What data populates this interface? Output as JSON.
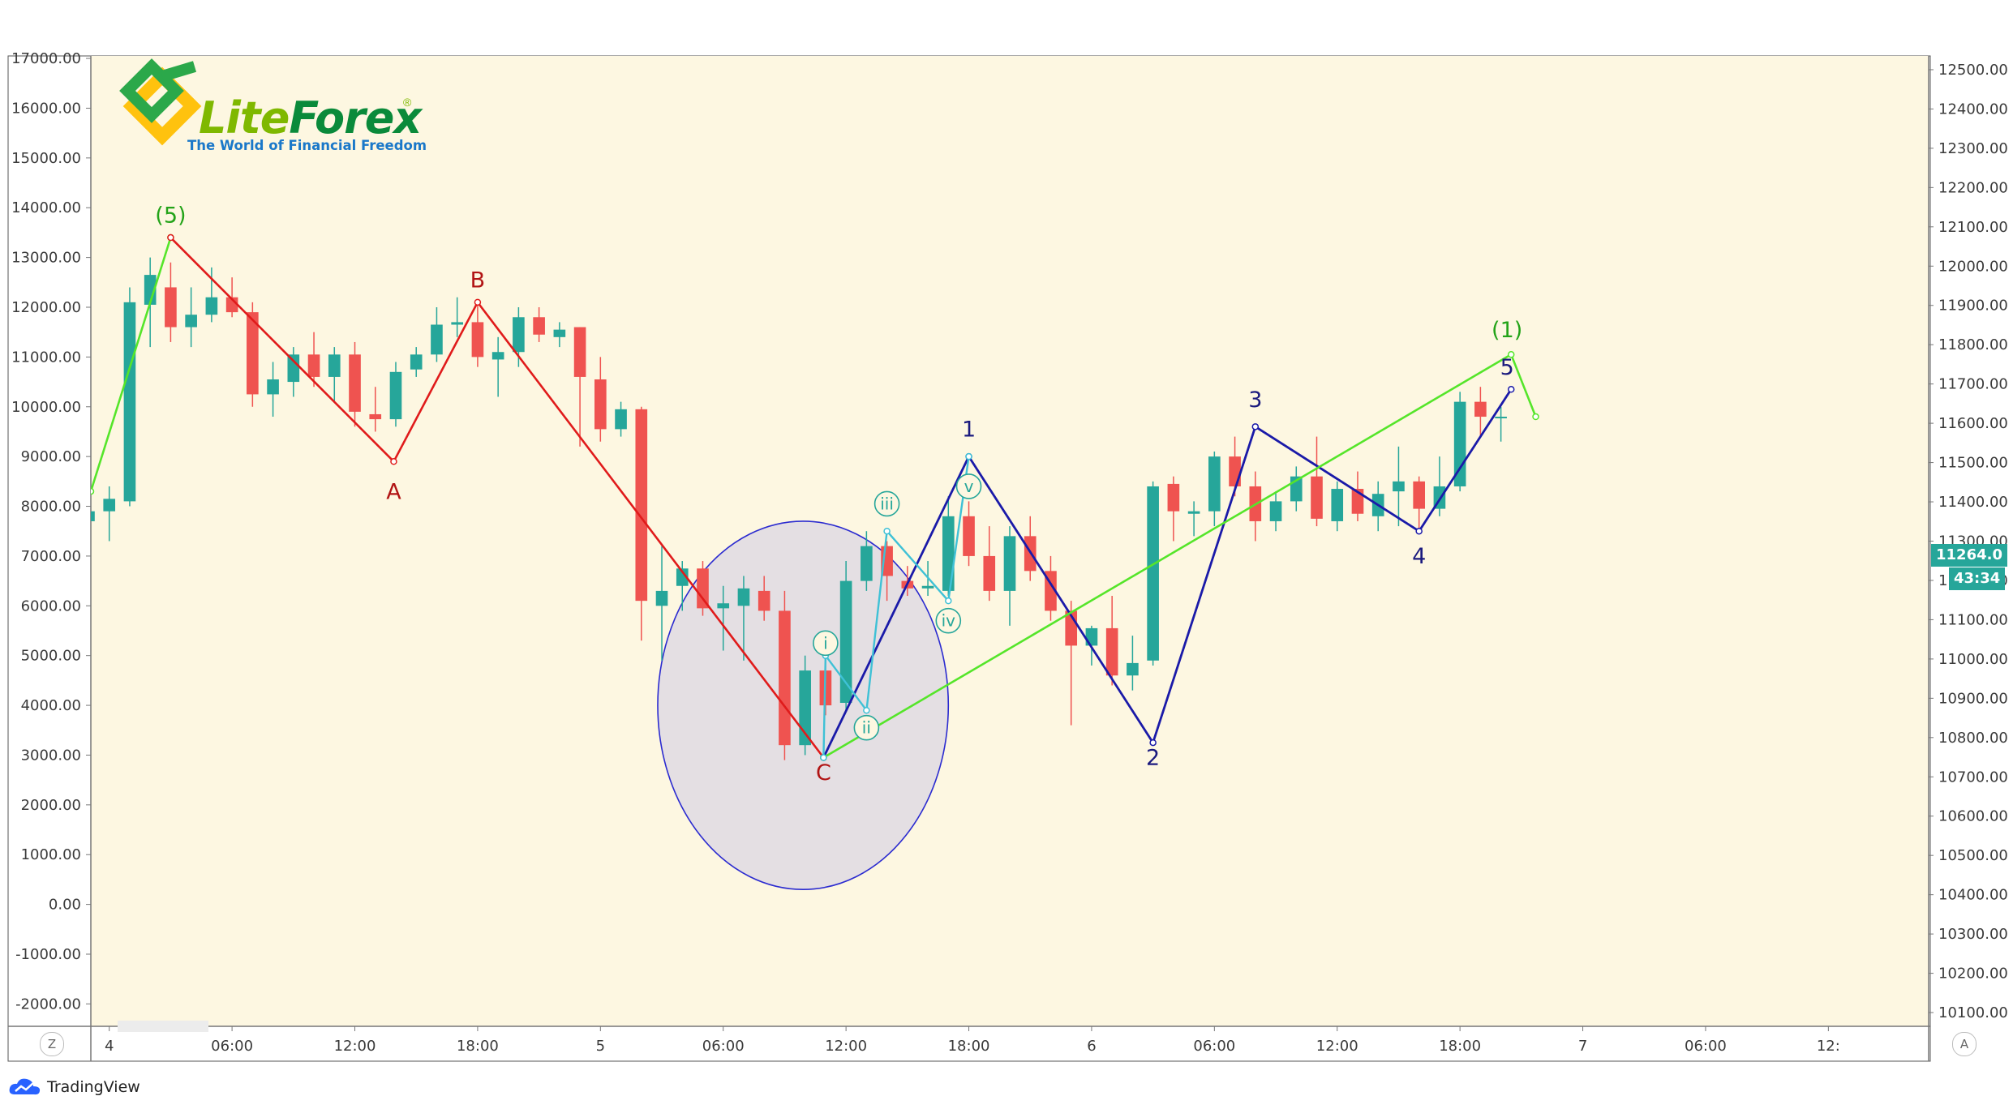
{
  "branding": {
    "logo_name_a": "Lite",
    "logo_name_b": "Forex",
    "logo_reg": "®",
    "logo_tagline": "The World of Financial Freedom",
    "platform": "TradingView"
  },
  "controls": {
    "left_button": "Z",
    "right_button": "A"
  },
  "price_tags": {
    "last_price": "11264.0",
    "countdown": "43:34"
  },
  "colors": {
    "background": "#fdf7e1",
    "up": "#26a69a",
    "down": "#ef5350",
    "abc": "#e01b1b",
    "impulse": "#1a1aa8",
    "macro": "#55e52a",
    "subwave": "#3fc1d6",
    "circle_stroke": "#2b2bd0",
    "circle_fill": "#e4dfe3"
  },
  "chart_data": {
    "type": "candlestick",
    "title": "",
    "time_unit": "hours since day 4 00:00 (3-hour candles)",
    "x_range": [
      -0.9,
      88.9
    ],
    "x_ticks": [
      {
        "t": 0,
        "label": "4"
      },
      {
        "t": 6,
        "label": "06:00"
      },
      {
        "t": 12,
        "label": "12:00"
      },
      {
        "t": 18,
        "label": "18:00"
      },
      {
        "t": 24,
        "label": "5"
      },
      {
        "t": 30,
        "label": "06:00"
      },
      {
        "t": 36,
        "label": "12:00"
      },
      {
        "t": 42,
        "label": "18:00"
      },
      {
        "t": 48,
        "label": "6"
      },
      {
        "t": 54,
        "label": "06:00"
      },
      {
        "t": 60,
        "label": "12:00"
      },
      {
        "t": 66,
        "label": "18:00"
      },
      {
        "t": 72,
        "label": "7"
      },
      {
        "t": 78,
        "label": "06:00"
      },
      {
        "t": 84,
        "label": "12:"
      }
    ],
    "left_axis": {
      "range": [
        -2450,
        17050
      ],
      "ticks": [
        17000,
        16000,
        15000,
        14000,
        13000,
        12000,
        11000,
        10000,
        9000,
        8000,
        7000,
        6000,
        5000,
        4000,
        3000,
        2000,
        1000,
        0,
        -1000,
        -2000
      ],
      "labels": [
        "17000.00",
        "16000.00",
        "15000.00",
        "14000.00",
        "13000.00",
        "12000.00",
        "11000.00",
        "10000.00",
        "9000.00",
        "8000.00",
        "7000.00",
        "6000.00",
        "5000.00",
        "4000.00",
        "3000.00",
        "2000.00",
        "1000.00",
        "0.00",
        "-1000.00",
        "-2000.00"
      ]
    },
    "right_axis": {
      "range": [
        10065,
        12535
      ],
      "ticks": [
        12500,
        12400,
        12300,
        12200,
        12100,
        12000,
        11900,
        11800,
        11700,
        11600,
        11500,
        11400,
        11300,
        11200,
        11100,
        11000,
        10900,
        10800,
        10700,
        10600,
        10500,
        10400,
        10300,
        10200,
        10100
      ],
      "labels": [
        "12500.00",
        "12400.00",
        "12300.00",
        "12200.00",
        "12100.00",
        "12000.00",
        "11900.00",
        "11800.00",
        "11700.00",
        "11600.00",
        "11500.00",
        "11400.00",
        "11300.00",
        "11200.00",
        "11100.00",
        "11000.00",
        "10900.00",
        "10800.00",
        "10700.00",
        "10600.00",
        "10500.00",
        "10400.00",
        "10300.00",
        "10200.00",
        "10100.00"
      ]
    },
    "candles": [
      {
        "t": -1,
        "o": 7700,
        "h": 8200,
        "l": 7000,
        "c": 7900
      },
      {
        "t": 0,
        "o": 7900,
        "h": 8400,
        "l": 7300,
        "c": 8150
      },
      {
        "t": 1,
        "o": 8100,
        "h": 12400,
        "l": 8000,
        "c": 12100
      },
      {
        "t": 2,
        "o": 12050,
        "h": 13000,
        "l": 11200,
        "c": 12650
      },
      {
        "t": 3,
        "o": 12400,
        "h": 12900,
        "l": 11300,
        "c": 11600
      },
      {
        "t": 4,
        "o": 11600,
        "h": 12400,
        "l": 11200,
        "c": 11850
      },
      {
        "t": 5,
        "o": 11850,
        "h": 12800,
        "l": 11700,
        "c": 12200
      },
      {
        "t": 6,
        "o": 12200,
        "h": 12600,
        "l": 11800,
        "c": 11900
      },
      {
        "t": 7,
        "o": 11900,
        "h": 12100,
        "l": 10000,
        "c": 10250
      },
      {
        "t": 8,
        "o": 10250,
        "h": 10900,
        "l": 9800,
        "c": 10550
      },
      {
        "t": 9,
        "o": 10500,
        "h": 11200,
        "l": 10200,
        "c": 11050
      },
      {
        "t": 10,
        "o": 11050,
        "h": 11500,
        "l": 10400,
        "c": 10600
      },
      {
        "t": 11,
        "o": 10600,
        "h": 11200,
        "l": 10100,
        "c": 11050
      },
      {
        "t": 12,
        "o": 11050,
        "h": 11300,
        "l": 9600,
        "c": 9900
      },
      {
        "t": 13,
        "o": 9850,
        "h": 10400,
        "l": 9500,
        "c": 9750
      },
      {
        "t": 14,
        "o": 9750,
        "h": 10900,
        "l": 9600,
        "c": 10700
      },
      {
        "t": 15,
        "o": 10750,
        "h": 11200,
        "l": 10600,
        "c": 11050
      },
      {
        "t": 16,
        "o": 11050,
        "h": 12000,
        "l": 10900,
        "c": 11650
      },
      {
        "t": 17,
        "o": 11650,
        "h": 12200,
        "l": 11400,
        "c": 11700
      },
      {
        "t": 18,
        "o": 11700,
        "h": 12100,
        "l": 10800,
        "c": 11000
      },
      {
        "t": 19,
        "o": 10950,
        "h": 11400,
        "l": 10200,
        "c": 11100
      },
      {
        "t": 20,
        "o": 11100,
        "h": 12000,
        "l": 10800,
        "c": 11800
      },
      {
        "t": 21,
        "o": 11800,
        "h": 12000,
        "l": 11300,
        "c": 11450
      },
      {
        "t": 22,
        "o": 11400,
        "h": 11700,
        "l": 11200,
        "c": 11550
      },
      {
        "t": 23,
        "o": 11600,
        "h": 11600,
        "l": 9200,
        "c": 10600
      },
      {
        "t": 24,
        "o": 10550,
        "h": 11000,
        "l": 9300,
        "c": 9550
      },
      {
        "t": 25,
        "o": 9550,
        "h": 10100,
        "l": 9400,
        "c": 9950
      },
      {
        "t": 26,
        "o": 9950,
        "h": 10000,
        "l": 5300,
        "c": 6100
      },
      {
        "t": 27,
        "o": 6000,
        "h": 7200,
        "l": 4900,
        "c": 6300
      },
      {
        "t": 28,
        "o": 6400,
        "h": 6900,
        "l": 5900,
        "c": 6750
      },
      {
        "t": 29,
        "o": 6750,
        "h": 6900,
        "l": 5800,
        "c": 5950
      },
      {
        "t": 30,
        "o": 5950,
        "h": 6400,
        "l": 5100,
        "c": 6050
      },
      {
        "t": 31,
        "o": 6000,
        "h": 6600,
        "l": 4900,
        "c": 6350
      },
      {
        "t": 32,
        "o": 6300,
        "h": 6600,
        "l": 5700,
        "c": 5900
      },
      {
        "t": 33,
        "o": 5900,
        "h": 6300,
        "l": 2900,
        "c": 3200
      },
      {
        "t": 34,
        "o": 3200,
        "h": 5000,
        "l": 3000,
        "c": 4700
      },
      {
        "t": 35,
        "o": 4700,
        "h": 4900,
        "l": 3800,
        "c": 4000
      },
      {
        "t": 36,
        "o": 4050,
        "h": 6900,
        "l": 3900,
        "c": 6500
      },
      {
        "t": 37,
        "o": 6500,
        "h": 7500,
        "l": 6300,
        "c": 7200
      },
      {
        "t": 38,
        "o": 7200,
        "h": 7300,
        "l": 6100,
        "c": 6600
      },
      {
        "t": 39,
        "o": 6500,
        "h": 6800,
        "l": 6200,
        "c": 6350
      },
      {
        "t": 40,
        "o": 6350,
        "h": 6900,
        "l": 6200,
        "c": 6400
      },
      {
        "t": 41,
        "o": 6300,
        "h": 8200,
        "l": 6200,
        "c": 7800
      },
      {
        "t": 42,
        "o": 7800,
        "h": 8100,
        "l": 6800,
        "c": 7000
      },
      {
        "t": 43,
        "o": 7000,
        "h": 7600,
        "l": 6100,
        "c": 6300
      },
      {
        "t": 44,
        "o": 6300,
        "h": 7600,
        "l": 5600,
        "c": 7400
      },
      {
        "t": 45,
        "o": 7400,
        "h": 7800,
        "l": 6500,
        "c": 6700
      },
      {
        "t": 46,
        "o": 6700,
        "h": 7000,
        "l": 5700,
        "c": 5900
      },
      {
        "t": 47,
        "o": 5900,
        "h": 6100,
        "l": 3600,
        "c": 5200
      },
      {
        "t": 48,
        "o": 5200,
        "h": 5600,
        "l": 4800,
        "c": 5550
      },
      {
        "t": 49,
        "o": 5550,
        "h": 6200,
        "l": 4400,
        "c": 4600
      },
      {
        "t": 50,
        "o": 4600,
        "h": 5400,
        "l": 4300,
        "c": 4850
      },
      {
        "t": 51,
        "o": 4900,
        "h": 8500,
        "l": 4800,
        "c": 8400
      },
      {
        "t": 52,
        "o": 8450,
        "h": 8600,
        "l": 7300,
        "c": 7900
      },
      {
        "t": 53,
        "o": 7850,
        "h": 8100,
        "l": 7400,
        "c": 7900
      },
      {
        "t": 54,
        "o": 7900,
        "h": 9100,
        "l": 7600,
        "c": 9000
      },
      {
        "t": 55,
        "o": 9000,
        "h": 9400,
        "l": 8200,
        "c": 8400
      },
      {
        "t": 56,
        "o": 8400,
        "h": 8700,
        "l": 7300,
        "c": 7700
      },
      {
        "t": 57,
        "o": 7700,
        "h": 8300,
        "l": 7500,
        "c": 8100
      },
      {
        "t": 58,
        "o": 8100,
        "h": 8800,
        "l": 7900,
        "c": 8600
      },
      {
        "t": 59,
        "o": 8600,
        "h": 9400,
        "l": 7600,
        "c": 7750
      },
      {
        "t": 60,
        "o": 7700,
        "h": 8500,
        "l": 7500,
        "c": 8350
      },
      {
        "t": 61,
        "o": 8350,
        "h": 8700,
        "l": 7700,
        "c": 7850
      },
      {
        "t": 62,
        "o": 7800,
        "h": 8500,
        "l": 7500,
        "c": 8250
      },
      {
        "t": 63,
        "o": 8300,
        "h": 9200,
        "l": 7600,
        "c": 8500
      },
      {
        "t": 64,
        "o": 8500,
        "h": 8600,
        "l": 7500,
        "c": 7950
      },
      {
        "t": 65,
        "o": 7950,
        "h": 9000,
        "l": 7800,
        "c": 8400
      },
      {
        "t": 66,
        "o": 8400,
        "h": 10300,
        "l": 8300,
        "c": 10100
      },
      {
        "t": 67,
        "o": 10100,
        "h": 10400,
        "l": 9400,
        "c": 9800
      },
      {
        "t": 68,
        "o": 9800,
        "h": 10000,
        "l": 9300,
        "c": 9800
      }
    ],
    "waves": [
      {
        "name": "macro-line",
        "color": "#55e52a",
        "points": [
          [
            -0.9,
            8300
          ],
          [
            3,
            13400
          ]
        ]
      },
      {
        "name": "abc-wave",
        "color": "#e01b1b",
        "points": [
          [
            3,
            13400
          ],
          [
            13.9,
            8900
          ],
          [
            18,
            12100
          ],
          [
            34.9,
            2950
          ]
        ]
      },
      {
        "name": "impulse-wave",
        "color": "#1a1aa8",
        "points": [
          [
            34.9,
            2950
          ],
          [
            42,
            9000
          ],
          [
            51,
            3250
          ],
          [
            56,
            9600
          ],
          [
            64,
            7500
          ],
          [
            68.5,
            10350
          ]
        ]
      },
      {
        "name": "wave-1-green",
        "color": "#55e52a",
        "points": [
          [
            34.9,
            2950
          ],
          [
            68.5,
            11050
          ],
          [
            69.7,
            9800
          ]
        ]
      },
      {
        "name": "subwave",
        "color": "#3fc1d6",
        "points": [
          [
            34.9,
            2950
          ],
          [
            35,
            5000
          ],
          [
            37,
            3900
          ],
          [
            38,
            7500
          ],
          [
            41,
            6100
          ],
          [
            42,
            9000
          ]
        ]
      }
    ],
    "wave_labels": [
      {
        "text": "(5)",
        "t": 3,
        "v": 13700,
        "color": "#23a318"
      },
      {
        "text": "A",
        "t": 13.9,
        "v": 8150,
        "color": "#b11414"
      },
      {
        "text": "B",
        "t": 18,
        "v": 12400,
        "color": "#b11414"
      },
      {
        "text": "C",
        "t": 34.9,
        "v": 2500,
        "color": "#b11414"
      },
      {
        "text": "1",
        "t": 42,
        "v": 9400,
        "color": "#1a1a7e"
      },
      {
        "text": "2",
        "t": 51,
        "v": 2800,
        "color": "#1a1a7e"
      },
      {
        "text": "3",
        "t": 56,
        "v": 10000,
        "color": "#1a1a7e"
      },
      {
        "text": "4",
        "t": 64,
        "v": 6850,
        "color": "#1a1a7e"
      },
      {
        "text": "5",
        "t": 68.3,
        "v": 10650,
        "color": "#1a1a7e"
      },
      {
        "text": "(1)",
        "t": 68.3,
        "v": 11400,
        "color": "#23a318"
      }
    ],
    "circled_labels": [
      {
        "text": "i",
        "t": 35,
        "v": 5250
      },
      {
        "text": "ii",
        "t": 37,
        "v": 3550
      },
      {
        "text": "iii",
        "t": 38,
        "v": 8050
      },
      {
        "text": "iv",
        "t": 41,
        "v": 5700
      },
      {
        "text": "v",
        "t": 42,
        "v": 8400
      }
    ],
    "highlight": {
      "shape": "ellipse",
      "center_t": 33.9,
      "center_v": 4000,
      "radius_t": 7.1,
      "radius_v": 3700
    }
  }
}
